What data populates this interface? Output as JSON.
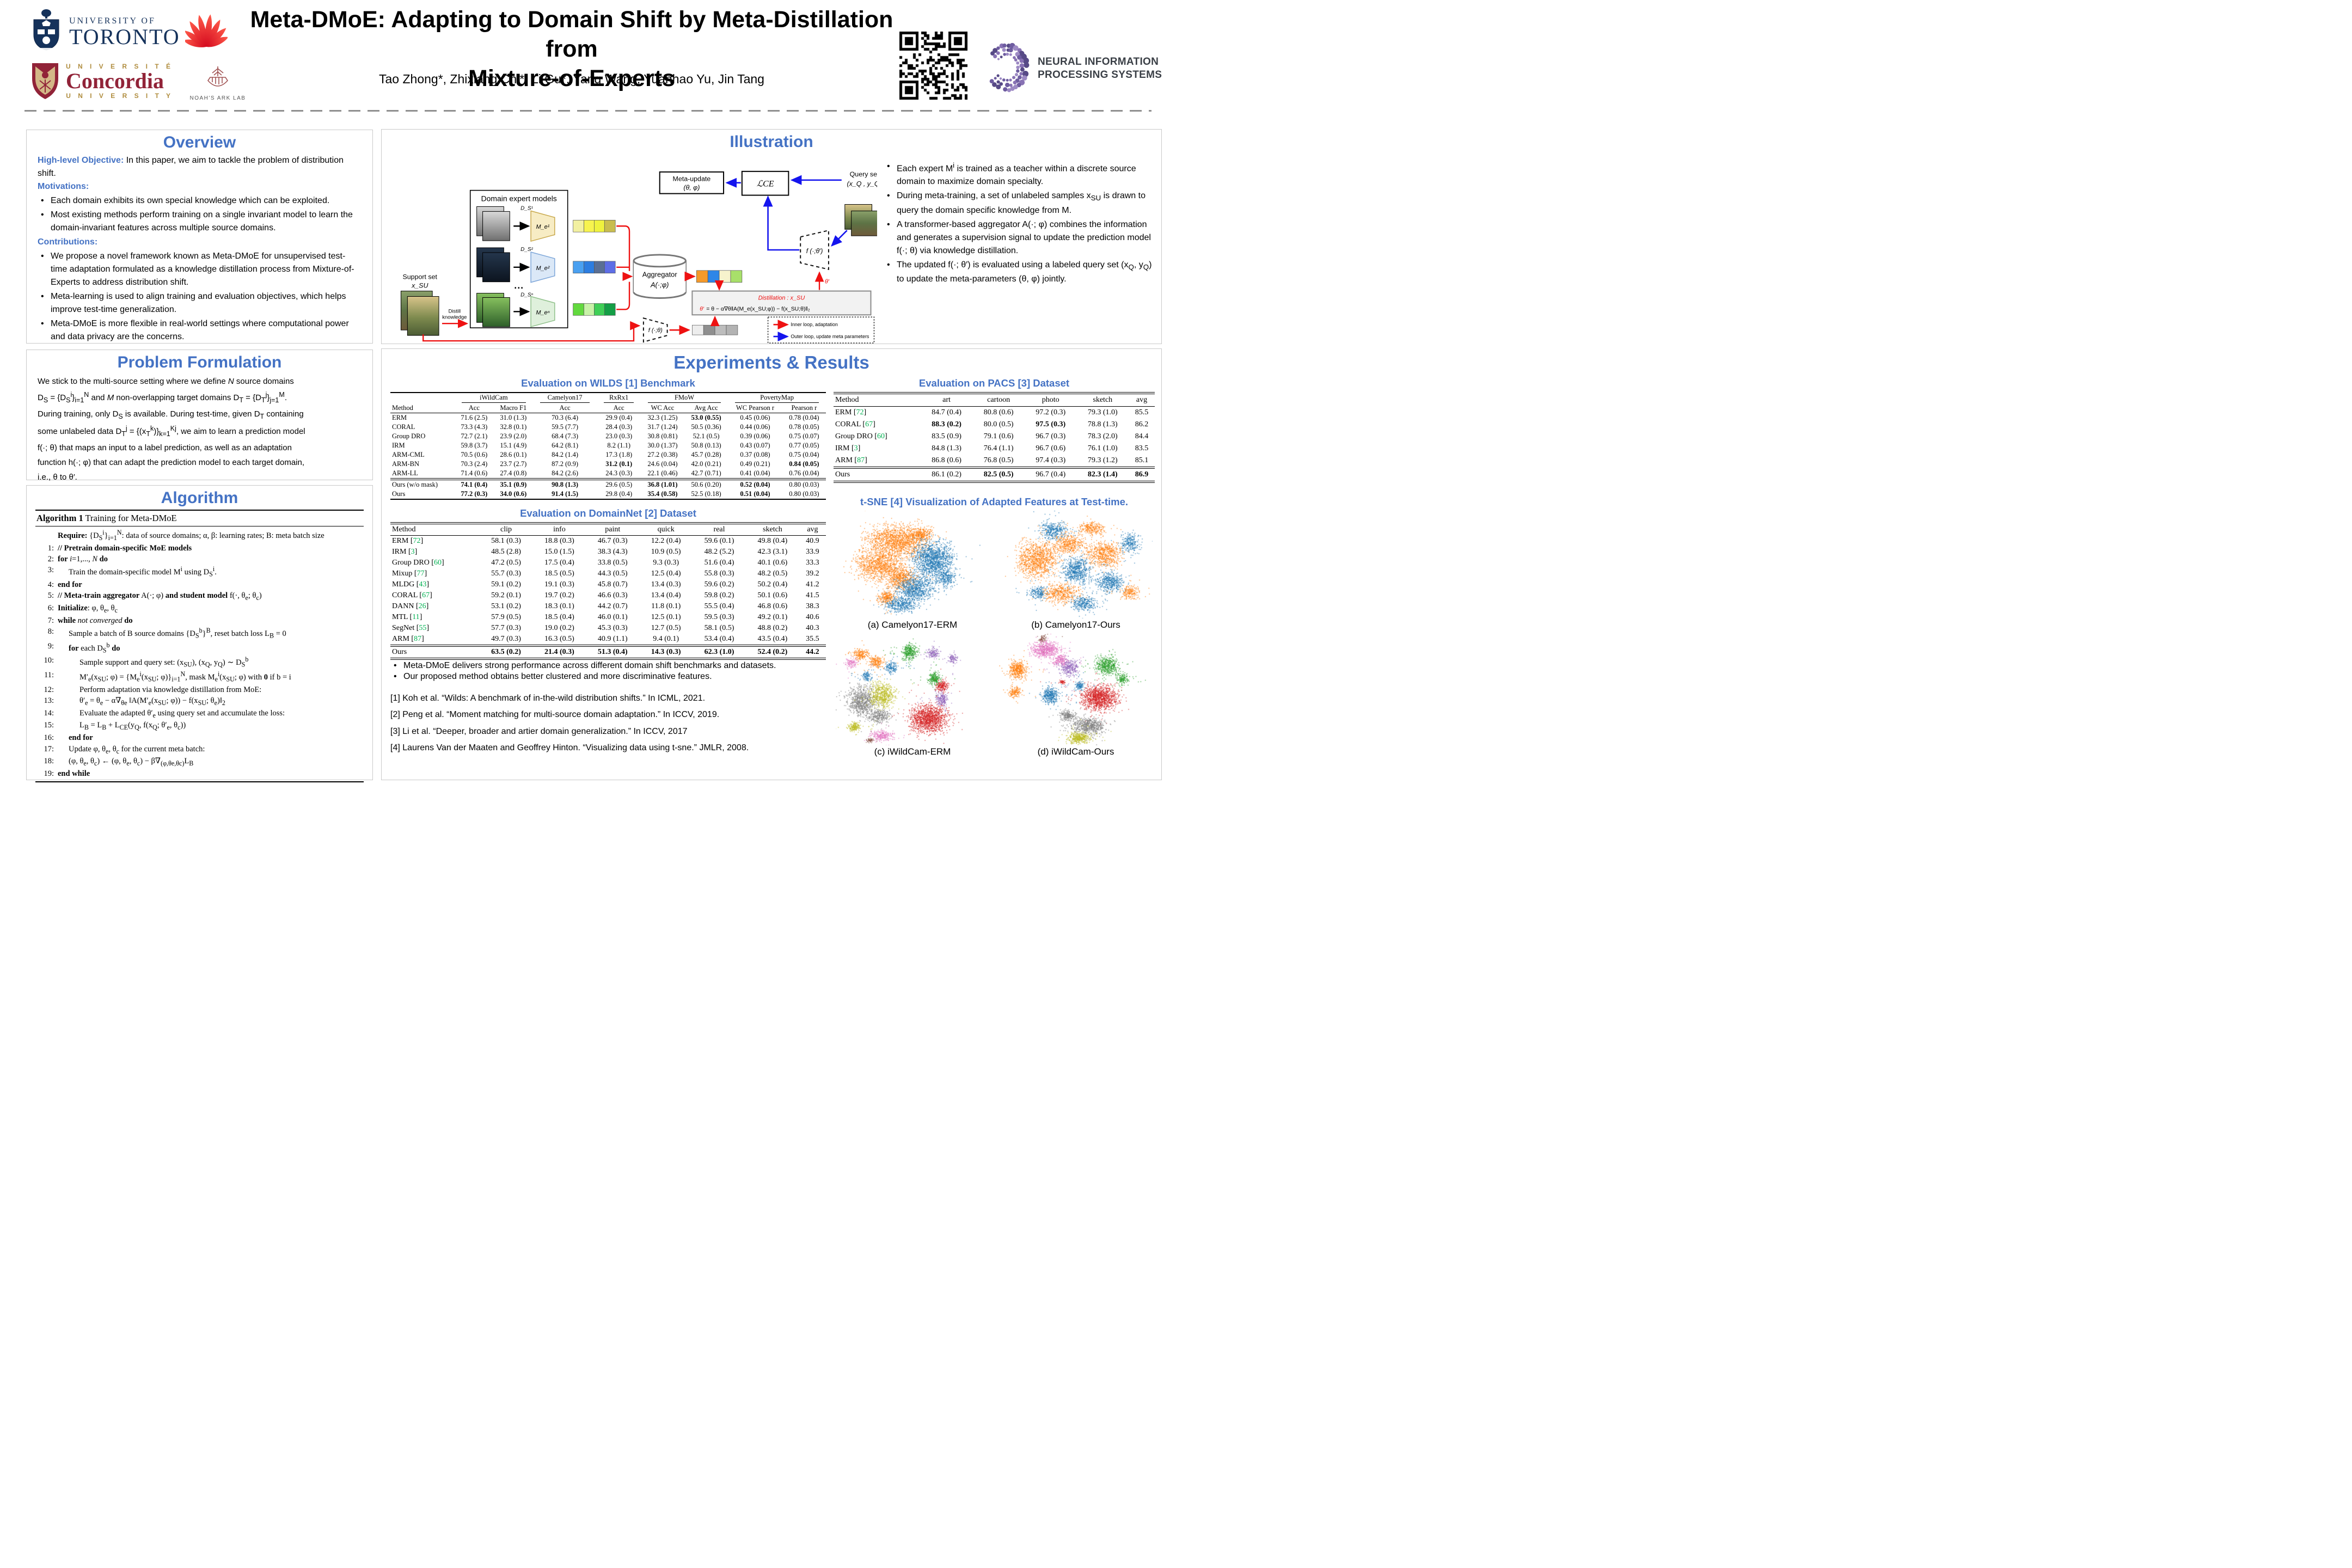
{
  "colors": {
    "section_title": "#4472c4",
    "cite_green": "#00b050",
    "inner_loop_red": "#ee1111",
    "outer_loop_blue": "#1414ee",
    "tab10": {
      "orange": "#ff7f0e",
      "blue": "#1f77b4",
      "red": "#d62728",
      "green": "#2ca02c",
      "purple": "#9467bd",
      "gray": "#7f7f7f",
      "olive": "#bcbd22",
      "pink": "#e377c2",
      "brown": "#8c564b"
    }
  },
  "header": {
    "title1": "Meta-DMoE: Adapting to Domain Shift by Meta-Distillation from",
    "title2": "Mixture-of-Experts",
    "authors": "Tao Zhong*, Zhixiang Chi*, Li Gu*, Yang Wang, Yuanhao Yu, Jin Tang",
    "uoft_line1": "UNIVERSITY OF",
    "uoft_line2": "TORONTO",
    "concordia_line1": "U N I V E R S I T É",
    "concordia_line2": "Concordia",
    "concordia_line3": "U N I V E R S I T Y",
    "noah_label": "NOAH'S ARK LAB",
    "neurips_line1": "NEURAL INFORMATION",
    "neurips_line2": "PROCESSING SYSTEMS"
  },
  "overview": {
    "title": "Overview",
    "objective_label": "High-level Objective:",
    "objective_text": " In this paper, we aim to tackle the problem of distribution shift.",
    "motivations_label": "Motivations:",
    "motivations": [
      "Each domain exhibits its own special knowledge which can be exploited.",
      "Most existing methods perform training on a single invariant model to learn the domain-invariant features across multiple source domains."
    ],
    "contributions_label": "Contributions:",
    "contributions": [
      "We propose a novel framework known as Meta-DMoE for unsupervised test-time adaptation formulated as a knowledge distillation process from Mixture-of-Experts to address distribution shift.",
      "Meta-learning is used to align training and evaluation objectives, which helps improve test-time generalization.",
      "Meta-DMoE is more flexible in real-world settings where computational power and data privacy are the concerns."
    ]
  },
  "problem": {
    "title": "Problem Formulation",
    "lines": [
      "We stick to the multi-source setting where we define *N* source domains",
      "D_{S} = {D_{S}^{i}}_{i=1}^{N} and *M* non-overlapping target domains D_{T} = {D_{T}^{j}}_{j=1}^{M}.",
      "During training, only D_{S} is available. During test-time, given D_{T} containing",
      "some unlabeled data D_{T}^{j} = {(x_{T}^{k})}_{k=1}^{Kj}, we aim to learn a prediction model",
      "f(·; θ) that maps an input to a label prediction, as well as an adaptation",
      "function h(·; φ) that can adapt the prediction model to each target domain,",
      "i.e., θ to θ′."
    ]
  },
  "algorithm": {
    "title": "Algorithm",
    "box_title_bold": "Algorithm 1",
    "box_title_rest": " Training for Meta-DMoE",
    "require_label": "Require:",
    "require_text": " {D_{S}^{i}}_{i=1}^{N}: data of source domains; α, β: learning rates; B: meta batch size",
    "lines": [
      {
        "n": "1:",
        "i": 0,
        "t": "**// Pretrain domain-specific MoE models**"
      },
      {
        "n": "2:",
        "i": 0,
        "t": "**for** *i*=1,..., *N* **do**"
      },
      {
        "n": "3:",
        "i": 1,
        "t": "Train the domain-specific model M^{i} using D_{S}^{i}."
      },
      {
        "n": "4:",
        "i": 0,
        "t": "**end for**"
      },
      {
        "n": "5:",
        "i": 0,
        "t": "**// Meta-train aggregator** A(·; φ) **and student model** f(·, θ_{e}; θ_{c})"
      },
      {
        "n": "6:",
        "i": 0,
        "t": "**Initialize**: φ, θ_{e}, θ_{c}"
      },
      {
        "n": "7:",
        "i": 0,
        "t": "**while** *not converged* **do**"
      },
      {
        "n": "8:",
        "i": 1,
        "t": "Sample a batch of B source domains {D_{S}^{b}}^{B}, reset batch loss L_{B} = 0"
      },
      {
        "n": "9:",
        "i": 1,
        "t": "**for** each D_{S}^{b} **do**"
      },
      {
        "n": "10:",
        "i": 2,
        "t": "Sample support and query set: (x_{SU}), (x_{Q}, y_{Q}) ∼ D_{S}^{b}"
      },
      {
        "n": "11:",
        "i": 2,
        "t": "M′_{e}(x_{SU}; φ) = {M_{e}^{i}(x_{SU}; φ)}_{i=1}^{N}, mask M_{e}^{i}(x_{SU}; φ) with **0** if b = i"
      },
      {
        "n": "12:",
        "i": 2,
        "t": "Perform adaptation via knowledge distillation from MoE:"
      },
      {
        "n": "13:",
        "i": 2,
        "t": "θ′_{e} = θ_{e} − α∇_{θe} ‖A(M′_{e}(x_{SU}; φ)) − f(x_{SU}; θ_{e})‖_{2}"
      },
      {
        "n": "14:",
        "i": 2,
        "t": "Evaluate the adapted θ′_{e} using query set and accumulate the loss:"
      },
      {
        "n": "15:",
        "i": 2,
        "t": "L_{B} = L_{B} + L_{CE}(y_{Q}, f(x_{Q}; θ′_{e}, θ_{c}))"
      },
      {
        "n": "16:",
        "i": 1,
        "t": "**end for**"
      },
      {
        "n": "17:",
        "i": 1,
        "t": "Update φ, θ_{e}, θ_{c} for the current meta batch:"
      },
      {
        "n": "18:",
        "i": 1,
        "t": "(φ, θ_{e}, θ_{c}) ← (φ, θ_{e}, θ_{c}) − β∇_{(φ,θe,θc)}L_{B}"
      },
      {
        "n": "19:",
        "i": 0,
        "t": "**end while**"
      }
    ]
  },
  "illustration": {
    "title": "Illustration",
    "diagram": {
      "support_set_label": "Support set",
      "support_set_math": "x_SU",
      "distill_l1": "Distill",
      "distill_l2": "knowledge",
      "expert_box_title": "Domain expert models",
      "ds1": "D_S¹",
      "ds2": "D_S²",
      "dsn": "D_Sⁿ",
      "m1": "M_e¹",
      "m2": "M_e²",
      "mn": "M_eⁿ",
      "dots": "···",
      "aggregator_l1": "Aggregator",
      "aggregator_l2": "A(·;φ)",
      "meta_update_l1": "Meta-update",
      "meta_update_l2": "(θ, φ)",
      "lce": "ℒCE",
      "query_set_label": "Query set",
      "query_set_math": "(x_Q , y_Q)",
      "f_theta": "f (·;θ)",
      "f_theta_prime": "f (·;θ′)",
      "theta_prime": "θ′",
      "distill_title": "Distillation : x_SU",
      "formula_lhs": "θ′",
      "formula_rhs": "= θ − α∇θ‖A(M_e(x_SU;φ)) − f(x_SU;θ)‖₂",
      "legend_inner": "Inner loop, adaptation",
      "legend_outer": "Outer loop, update meta parameters"
    },
    "bullets": [
      "Each expert M^{i} is trained as a teacher within a discrete source domain to maximize domain specialty.",
      "During meta-training, a set of unlabeled samples x_{SU} is drawn to query the domain specific knowledge from M.",
      "A transformer-based aggregator A(·; φ) combines the information and generates a supervision signal to update the prediction model f(·; θ) via knowledge distillation.",
      "The updated f(·; θ′) is evaluated using a labeled query set (x_{Q}, y_{Q}) to update the meta-parameters (θ, φ) jointly."
    ]
  },
  "experiments": {
    "title": "Experiments & Results",
    "wilds": {
      "caption": "Evaluation on WILDS [1] Benchmark",
      "groups": [
        {
          "label": "iWildCam",
          "span": 2
        },
        {
          "label": "Camelyon17",
          "span": 1
        },
        {
          "label": "RxRx1",
          "span": 1
        },
        {
          "label": "FMoW",
          "span": 2
        },
        {
          "label": "PovertyMap",
          "span": 2
        }
      ],
      "headers": [
        "Method",
        "Acc",
        "Macro F1",
        "Acc",
        "Acc",
        "WC Acc",
        "Avg Acc",
        "WC Pearson r",
        "Pearson r"
      ],
      "rows": [
        {
          "m": "ERM",
          "v": [
            "71.6 (2.5)",
            "31.0 (1.3)",
            "70.3 (6.4)",
            "29.9 (0.4)",
            "32.3 (1.25)",
            "**53.0 (0.55)**",
            "0.45 (0.06)",
            "0.78 (0.04)"
          ]
        },
        {
          "m": "CORAL",
          "v": [
            "73.3 (4.3)",
            "32.8 (0.1)",
            "59.5 (7.7)",
            "28.4 (0.3)",
            "31.7 (1.24)",
            "50.5 (0.36)",
            "0.44 (0.06)",
            "0.78 (0.05)"
          ]
        },
        {
          "m": "Group DRO",
          "v": [
            "72.7 (2.1)",
            "23.9 (2.0)",
            "68.4 (7.3)",
            "23.0 (0.3)",
            "30.8 (0.81)",
            "52.1 (0.5)",
            "0.39 (0.06)",
            "0.75 (0.07)"
          ]
        },
        {
          "m": "IRM",
          "v": [
            "59.8 (3.7)",
            "15.1 (4.9)",
            "64.2 (8.1)",
            "8.2 (1.1)",
            "30.0 (1.37)",
            "50.8 (0.13)",
            "0.43 (0.07)",
            "0.77 (0.05)"
          ]
        },
        {
          "m": "ARM-CML",
          "v": [
            "70.5 (0.6)",
            "28.6 (0.1)",
            "84.2 (1.4)",
            "17.3 (1.8)",
            "27.2 (0.38)",
            "45.7 (0.28)",
            "0.37 (0.08)",
            "0.75 (0.04)"
          ]
        },
        {
          "m": "ARM-BN",
          "v": [
            "70.3 (2.4)",
            "23.7 (2.7)",
            "87.2 (0.9)",
            "**31.2 (0.1)**",
            "24.6 (0.04)",
            "42.0 (0.21)",
            "0.49 (0.21)",
            "**0.84 (0.05)**"
          ]
        },
        {
          "m": "ARM-LL",
          "v": [
            "71.4 (0.6)",
            "27.4 (0.8)",
            "84.2 (2.6)",
            "24.3 (0.3)",
            "22.1 (0.46)",
            "42.7 (0.71)",
            "0.41 (0.04)",
            "0.76 (0.04)"
          ]
        },
        {
          "m": "Ours (w/o mask)",
          "sep": true,
          "v": [
            "**74.1 (0.4)**",
            "**35.1 (0.9)**",
            "**90.8 (1.3)**",
            "29.6 (0.5)",
            "**36.8 (1.01)**",
            "50.6 (0.20)",
            "**0.52 (0.04)**",
            "0.80 (0.03)"
          ]
        },
        {
          "m": "Ours",
          "v": [
            "**77.2 (0.3)**",
            "**34.0 (0.6)**",
            "**91.4 (1.5)**",
            "29.8 (0.4)",
            "**35.4 (0.58)**",
            "52.5 (0.18)",
            "**0.51 (0.04)**",
            "0.80 (0.03)"
          ]
        }
      ]
    },
    "domainnet": {
      "caption": "Evaluation on DomainNet [2] Dataset",
      "headers": [
        "Method",
        "clip",
        "info",
        "paint",
        "quick",
        "real",
        "sketch",
        "avg"
      ],
      "rows": [
        {
          "m": "ERM",
          "c": "72",
          "v": [
            "58.1 (0.3)",
            "18.8 (0.3)",
            "46.7 (0.3)",
            "12.2 (0.4)",
            "59.6 (0.1)",
            "49.8 (0.4)",
            "40.9"
          ]
        },
        {
          "m": "IRM",
          "c": "3",
          "v": [
            "48.5 (2.8)",
            "15.0 (1.5)",
            "38.3 (4.3)",
            "10.9 (0.5)",
            "48.2 (5.2)",
            "42.3 (3.1)",
            "33.9"
          ]
        },
        {
          "m": "Group DRO",
          "c": "60",
          "v": [
            "47.2 (0.5)",
            "17.5 (0.4)",
            "33.8 (0.5)",
            "9.3 (0.3)",
            "51.6 (0.4)",
            "40.1 (0.6)",
            "33.3"
          ]
        },
        {
          "m": "Mixup",
          "c": "77",
          "v": [
            "55.7 (0.3)",
            "18.5 (0.5)",
            "44.3 (0.5)",
            "12.5 (0.4)",
            "55.8 (0.3)",
            "48.2 (0.5)",
            "39.2"
          ]
        },
        {
          "m": "MLDG",
          "c": "43",
          "v": [
            "59.1 (0.2)",
            "19.1 (0.3)",
            "45.8 (0.7)",
            "13.4 (0.3)",
            "59.6 (0.2)",
            "50.2 (0.4)",
            "41.2"
          ]
        },
        {
          "m": "CORAL",
          "c": "67",
          "v": [
            "59.2 (0.1)",
            "19.7 (0.2)",
            "46.6 (0.3)",
            "13.4 (0.4)",
            "59.8 (0.2)",
            "50.1 (0.6)",
            "41.5"
          ]
        },
        {
          "m": "DANN",
          "c": "26",
          "v": [
            "53.1 (0.2)",
            "18.3 (0.1)",
            "44.2 (0.7)",
            "11.8 (0.1)",
            "55.5 (0.4)",
            "46.8 (0.6)",
            "38.3"
          ]
        },
        {
          "m": "MTL",
          "c": "11",
          "v": [
            "57.9 (0.5)",
            "18.5 (0.4)",
            "46.0 (0.1)",
            "12.5 (0.1)",
            "59.5 (0.3)",
            "49.2 (0.1)",
            "40.6"
          ]
        },
        {
          "m": "SegNet",
          "c": "55",
          "v": [
            "57.7 (0.3)",
            "19.0 (0.2)",
            "45.3 (0.3)",
            "12.7 (0.5)",
            "58.1 (0.5)",
            "48.8 (0.2)",
            "40.3"
          ]
        },
        {
          "m": "ARM",
          "c": "87",
          "v": [
            "49.7 (0.3)",
            "16.3 (0.5)",
            "40.9 (1.1)",
            "9.4 (0.1)",
            "53.4 (0.4)",
            "43.5 (0.4)",
            "35.5"
          ]
        },
        {
          "m": "Ours",
          "sep": true,
          "v": [
            "**63.5 (0.2)**",
            "**21.4 (0.3)**",
            "**51.3 (0.4)**",
            "**14.3 (0.3)**",
            "**62.3 (1.0)**",
            "**52.4 (0.2)**",
            "**44.2**"
          ]
        }
      ]
    },
    "pacs": {
      "caption": "Evaluation on PACS [3] Dataset",
      "headers": [
        "Method",
        "art",
        "cartoon",
        "photo",
        "sketch",
        "avg"
      ],
      "rows": [
        {
          "m": "ERM",
          "c": "72",
          "v": [
            "84.7 (0.4)",
            "80.8 (0.6)",
            "97.2 (0.3)",
            "79.3 (1.0)",
            "85.5"
          ]
        },
        {
          "m": "CORAL",
          "c": "67",
          "v": [
            "**88.3 (0.2)**",
            "80.0 (0.5)",
            "**97.5 (0.3)**",
            "78.8 (1.3)",
            "86.2"
          ]
        },
        {
          "m": "Group DRO",
          "c": "60",
          "v": [
            "83.5 (0.9)",
            "79.1 (0.6)",
            "96.7 (0.3)",
            "78.3 (2.0)",
            "84.4"
          ]
        },
        {
          "m": "IRM",
          "c": "3",
          "v": [
            "84.8 (1.3)",
            "76.4 (1.1)",
            "96.7 (0.6)",
            "76.1 (1.0)",
            "83.5"
          ]
        },
        {
          "m": "ARM",
          "c": "87",
          "v": [
            "86.8 (0.6)",
            "76.8 (0.5)",
            "97.4 (0.3)",
            "79.3 (1.2)",
            "85.1"
          ]
        },
        {
          "m": "Ours",
          "sep": true,
          "v": [
            "86.1 (0.2)",
            "**82.5 (0.5)**",
            "96.7 (0.4)",
            "**82.3 (1.4)**",
            "**86.9**"
          ]
        }
      ]
    },
    "tsne": {
      "caption": "t-SNE [4] Visualization of Adapted Features at Test-time.",
      "captions": [
        "(a) Camelyon17-ERM",
        "(b) Camelyon17-Ours",
        "(c) iWildCam-ERM",
        "(d) iWildCam-Ours"
      ]
    },
    "bullets": [
      "Meta-DMoE delivers strong performance across different domain shift benchmarks and datasets.",
      "Our proposed method obtains better clustered and more discriminative features."
    ],
    "references": [
      "[1] Koh et al. “Wilds: A benchmark of in-the-wild distribution shifts.” In ICML, 2021.",
      "[2] Peng et al. “Moment matching for multi-source domain adaptation.” In ICCV, 2019.",
      "[3] Li et al. “Deeper, broader and artier domain generalization.” In ICCV, 2017",
      "[4] Laurens Van der Maaten and Geoffrey Hinton. “Visualizing data using t-sne.” JMLR, 2008."
    ]
  }
}
